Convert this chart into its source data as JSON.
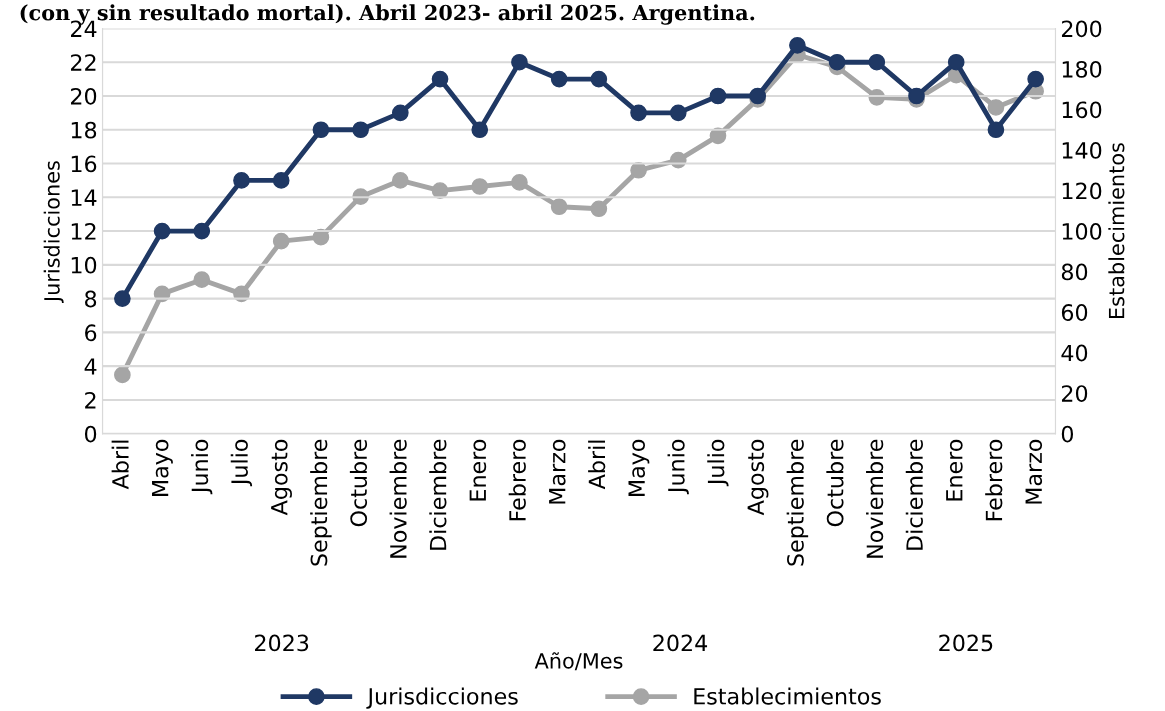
{
  "chart_data": {
    "type": "line",
    "title": "(con y sin resultado mortal). Abril 2023- abril 2025. Argentina.",
    "xlabel": "Año/Mes",
    "ylabel": "Jurisdicciones",
    "y2label": "Establecimientos",
    "categories": [
      "Abril",
      "Mayo",
      "Junio",
      "Julio",
      "Agosto",
      "Septiembre",
      "Octubre",
      "Noviembre",
      "Diciembre",
      "Enero",
      "Febrero",
      "Marzo",
      "Abril",
      "Mayo",
      "Junio",
      "Julio",
      "Agosto",
      "Septiembre",
      "Octubre",
      "Noviembre",
      "Diciembre",
      "Enero",
      "Febrero",
      "Marzo"
    ],
    "series": [
      {
        "name": "Jurisdicciones",
        "color": "#1f3864",
        "values": [
          8,
          12,
          12,
          15,
          15,
          18,
          18,
          19,
          21,
          18,
          22,
          21,
          21,
          19,
          19,
          20,
          20,
          23,
          22,
          22,
          20,
          22,
          18,
          21
        ]
      },
      {
        "name": "Establecimientos",
        "color": "#a5a5a5",
        "axis": "y2",
        "values": [
          29,
          69,
          76,
          69,
          95,
          97,
          117,
          125,
          120,
          122,
          124,
          112,
          111,
          130,
          135,
          147,
          165,
          187,
          181,
          166,
          165,
          177,
          161,
          169
        ]
      }
    ],
    "annotations": [
      "2023",
      "2024",
      "2025"
    ],
    "ylim": [
      0,
      24
    ],
    "yticks": [
      0,
      2,
      4,
      6,
      8,
      10,
      12,
      14,
      16,
      18,
      20,
      22,
      24
    ],
    "y2lim": [
      0,
      200
    ],
    "y2ticks": [
      0,
      20,
      40,
      60,
      80,
      100,
      120,
      140,
      160,
      180,
      200
    ],
    "grid": "y",
    "legend": "bottom",
    "marker": "circle",
    "line_style": "solid"
  }
}
